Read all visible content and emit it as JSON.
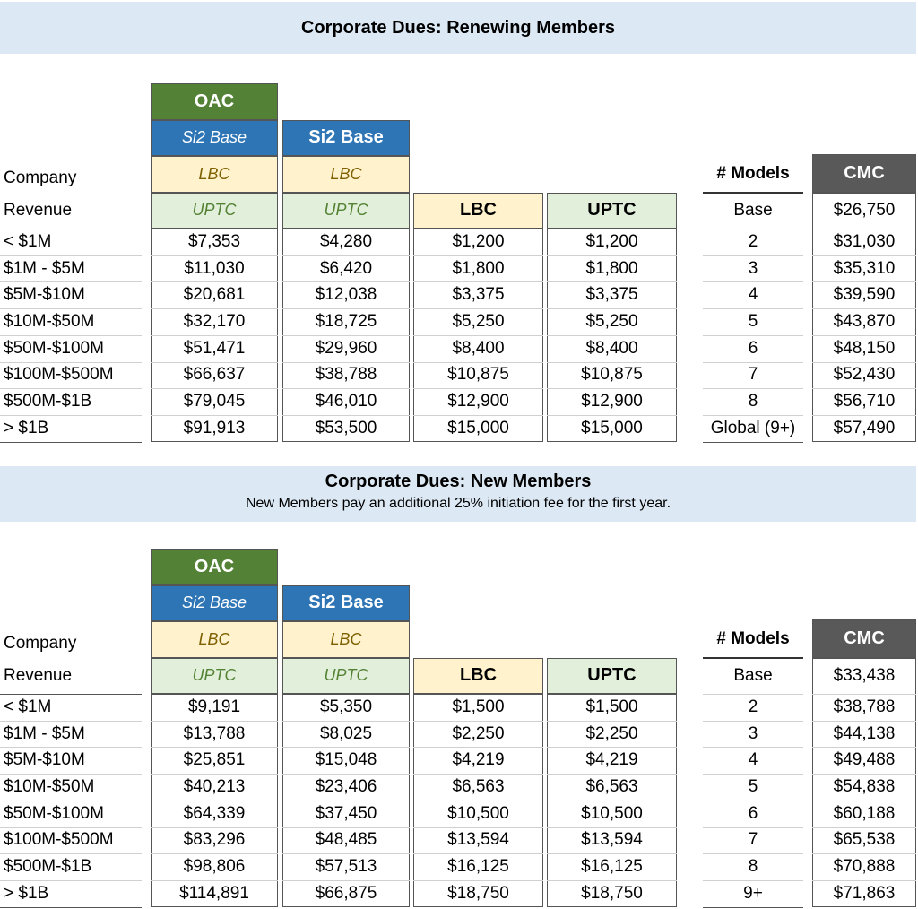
{
  "renewing": {
    "title": "Corporate Dues: Renewing Members",
    "headers": {
      "oac": "OAC",
      "si2_base_italic": "Si2 Base",
      "si2_base": "Si2 Base",
      "lbc_italic": "LBC",
      "uptc_italic": "UPTC",
      "lbc": "LBC",
      "uptc": "UPTC",
      "company": "Company",
      "revenue": "Revenue",
      "models": "# Models",
      "cmc": "CMC"
    },
    "rows": [
      {
        "revenue": "< $1M",
        "oac": "$7,353",
        "si2": "$4,280",
        "lbc": "$1,200",
        "uptc": "$1,200"
      },
      {
        "revenue": "$1M - $5M",
        "oac": "$11,030",
        "si2": "$6,420",
        "lbc": "$1,800",
        "uptc": "$1,800"
      },
      {
        "revenue": "$5M-$10M",
        "oac": "$20,681",
        "si2": "$12,038",
        "lbc": "$3,375",
        "uptc": "$3,375"
      },
      {
        "revenue": "$10M-$50M",
        "oac": "$32,170",
        "si2": "$18,725",
        "lbc": "$5,250",
        "uptc": "$5,250"
      },
      {
        "revenue": "$50M-$100M",
        "oac": "$51,471",
        "si2": "$29,960",
        "lbc": "$8,400",
        "uptc": "$8,400"
      },
      {
        "revenue": "$100M-$500M",
        "oac": "$66,637",
        "si2": "$38,788",
        "lbc": "$10,875",
        "uptc": "$10,875"
      },
      {
        "revenue": "$500M-$1B",
        "oac": "$79,045",
        "si2": "$46,010",
        "lbc": "$12,900",
        "uptc": "$12,900"
      },
      {
        "revenue": "> $1B",
        "oac": "$91,913",
        "si2": "$53,500",
        "lbc": "$15,000",
        "uptc": "$15,000"
      }
    ],
    "cmc": [
      {
        "models": "Base",
        "price": "$26,750"
      },
      {
        "models": "2",
        "price": "$31,030"
      },
      {
        "models": "3",
        "price": "$35,310"
      },
      {
        "models": "4",
        "price": "$39,590"
      },
      {
        "models": "5",
        "price": "$43,870"
      },
      {
        "models": "6",
        "price": "$48,150"
      },
      {
        "models": "7",
        "price": "$52,430"
      },
      {
        "models": "8",
        "price": "$56,710"
      },
      {
        "models": "Global (9+)",
        "price": "$57,490"
      }
    ]
  },
  "new": {
    "title": "Corporate Dues: New Members",
    "subtitle": "New Members pay an additional 25% initiation fee for the first year.",
    "headers": {
      "oac": "OAC",
      "si2_base_italic": "Si2 Base",
      "si2_base": "Si2 Base",
      "lbc_italic": "LBC",
      "uptc_italic": "UPTC",
      "lbc": "LBC",
      "uptc": "UPTC",
      "company": "Company",
      "revenue": "Revenue",
      "models": "# Models",
      "cmc": "CMC"
    },
    "rows": [
      {
        "revenue": "< $1M",
        "oac": "$9,191",
        "si2": "$5,350",
        "lbc": "$1,500",
        "uptc": "$1,500"
      },
      {
        "revenue": "$1M - $5M",
        "oac": "$13,788",
        "si2": "$8,025",
        "lbc": "$2,250",
        "uptc": "$2,250"
      },
      {
        "revenue": "$5M-$10M",
        "oac": "$25,851",
        "si2": "$15,048",
        "lbc": "$4,219",
        "uptc": "$4,219"
      },
      {
        "revenue": "$10M-$50M",
        "oac": "$40,213",
        "si2": "$23,406",
        "lbc": "$6,563",
        "uptc": "$6,563"
      },
      {
        "revenue": "$50M-$100M",
        "oac": "$64,339",
        "si2": "$37,450",
        "lbc": "$10,500",
        "uptc": "$10,500"
      },
      {
        "revenue": "$100M-$500M",
        "oac": "$83,296",
        "si2": "$48,485",
        "lbc": "$13,594",
        "uptc": "$13,594"
      },
      {
        "revenue": "$500M-$1B",
        "oac": "$98,806",
        "si2": "$57,513",
        "lbc": "$16,125",
        "uptc": "$16,125"
      },
      {
        "revenue": "> $1B",
        "oac": "$114,891",
        "si2": "$66,875",
        "lbc": "$18,750",
        "uptc": "$18,750"
      }
    ],
    "cmc": [
      {
        "models": "Base",
        "price": "$33,438"
      },
      {
        "models": "2",
        "price": "$38,788"
      },
      {
        "models": "3",
        "price": "$44,138"
      },
      {
        "models": "4",
        "price": "$49,488"
      },
      {
        "models": "5",
        "price": "$54,838"
      },
      {
        "models": "6",
        "price": "$60,188"
      },
      {
        "models": "7",
        "price": "$65,538"
      },
      {
        "models": "8",
        "price": "$70,888"
      },
      {
        "models": "9+",
        "price": "$71,863"
      }
    ]
  }
}
